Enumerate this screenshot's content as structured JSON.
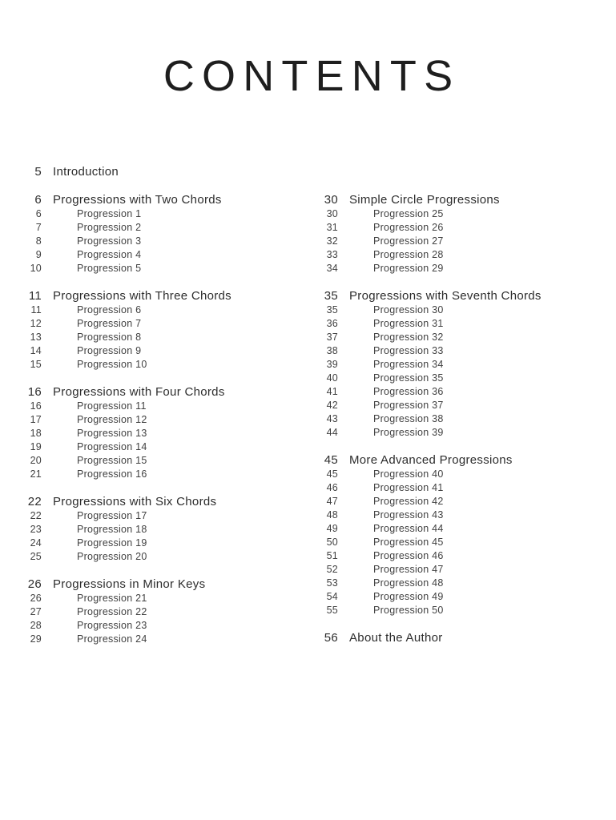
{
  "title": "CONTENTS",
  "colors": {
    "background": "#ffffff",
    "heading_text": "#2d2d2d",
    "item_text": "#414141"
  },
  "columns": [
    {
      "sections": [
        {
          "page": "5",
          "title": "Introduction",
          "items": []
        },
        {
          "page": "6",
          "title": "Progressions with Two Chords",
          "items": [
            {
              "page": "6",
              "label": "Progression 1"
            },
            {
              "page": "7",
              "label": "Progression 2"
            },
            {
              "page": "8",
              "label": "Progression 3"
            },
            {
              "page": "9",
              "label": "Progression 4"
            },
            {
              "page": "10",
              "label": "Progression 5"
            }
          ]
        },
        {
          "page": "11",
          "title": "Progressions with Three Chords",
          "items": [
            {
              "page": "11",
              "label": "Progression 6"
            },
            {
              "page": "12",
              "label": "Progression 7"
            },
            {
              "page": "13",
              "label": "Progression 8"
            },
            {
              "page": "14",
              "label": "Progression 9"
            },
            {
              "page": "15",
              "label": "Progression 10"
            }
          ]
        },
        {
          "page": "16",
          "title": "Progressions with Four Chords",
          "items": [
            {
              "page": "16",
              "label": "Progression 11"
            },
            {
              "page": "17",
              "label": "Progression 12"
            },
            {
              "page": "18",
              "label": "Progression 13"
            },
            {
              "page": "19",
              "label": "Progression 14"
            },
            {
              "page": "20",
              "label": "Progression 15"
            },
            {
              "page": "21",
              "label": "Progression 16"
            }
          ]
        },
        {
          "page": "22",
          "title": "Progressions with Six Chords",
          "items": [
            {
              "page": "22",
              "label": "Progression 17"
            },
            {
              "page": "23",
              "label": "Progression 18"
            },
            {
              "page": "24",
              "label": "Progression 19"
            },
            {
              "page": "25",
              "label": "Progression 20"
            }
          ]
        },
        {
          "page": "26",
          "title": "Progressions in Minor Keys",
          "items": [
            {
              "page": "26",
              "label": "Progression 21"
            },
            {
              "page": "27",
              "label": "Progression 22"
            },
            {
              "page": "28",
              "label": "Progression 23"
            },
            {
              "page": "29",
              "label": "Progression 24"
            }
          ]
        }
      ]
    },
    {
      "sections": [
        {
          "page": "30",
          "title": "Simple Circle Progressions",
          "items": [
            {
              "page": "30",
              "label": "Progression 25"
            },
            {
              "page": "31",
              "label": "Progression 26"
            },
            {
              "page": "32",
              "label": "Progression 27"
            },
            {
              "page": "33",
              "label": "Progression 28"
            },
            {
              "page": "34",
              "label": "Progression 29"
            }
          ]
        },
        {
          "page": "35",
          "title": "Progressions with Seventh Chords",
          "items": [
            {
              "page": "35",
              "label": "Progression 30"
            },
            {
              "page": "36",
              "label": "Progression 31"
            },
            {
              "page": "37",
              "label": "Progression 32"
            },
            {
              "page": "38",
              "label": "Progression 33"
            },
            {
              "page": "39",
              "label": "Progression 34"
            },
            {
              "page": "40",
              "label": "Progression 35"
            },
            {
              "page": "41",
              "label": "Progression 36"
            },
            {
              "page": "42",
              "label": "Progression 37"
            },
            {
              "page": "43",
              "label": "Progression 38"
            },
            {
              "page": "44",
              "label": "Progression 39"
            }
          ]
        },
        {
          "page": "45",
          "title": "More Advanced Progressions",
          "items": [
            {
              "page": "45",
              "label": "Progression 40"
            },
            {
              "page": "46",
              "label": "Progression 41"
            },
            {
              "page": "47",
              "label": "Progression 42"
            },
            {
              "page": "48",
              "label": "Progression 43"
            },
            {
              "page": "49",
              "label": "Progression 44"
            },
            {
              "page": "50",
              "label": "Progression 45"
            },
            {
              "page": "51",
              "label": "Progression 46"
            },
            {
              "page": "52",
              "label": "Progression 47"
            },
            {
              "page": "53",
              "label": "Progression 48"
            },
            {
              "page": "54",
              "label": "Progression 49"
            },
            {
              "page": "55",
              "label": "Progression 50"
            }
          ]
        },
        {
          "page": "56",
          "title": "About the Author",
          "items": []
        }
      ]
    }
  ]
}
